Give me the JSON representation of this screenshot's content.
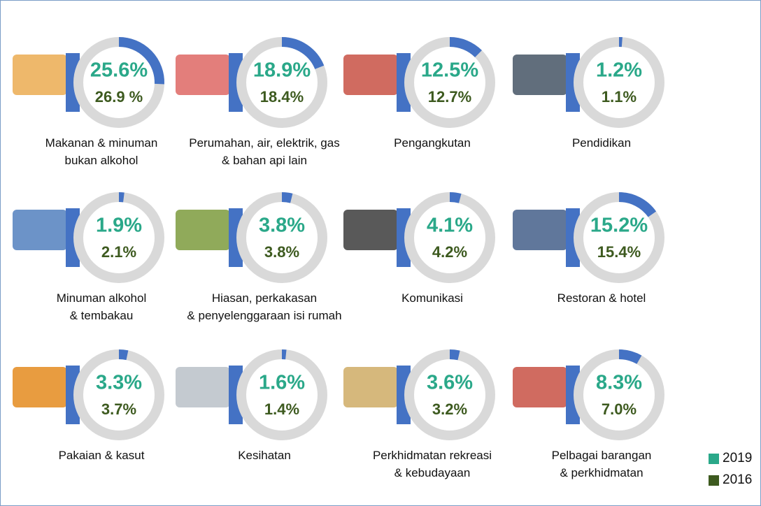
{
  "chart_data": {
    "type": "donut",
    "categories": [
      "Makanan & minuman\nbukan alkohol",
      "Perumahan, air, elektrik, gas\n& bahan api lain",
      "Pengangkutan",
      "Pendidikan",
      "Minuman alkohol\n& tembakau",
      "Hiasan, perkakasan\n& penyelenggaraan isi rumah",
      "Komunikasi",
      "Restoran & hotel",
      "Pakaian & kasut",
      "Kesihatan",
      "Perkhidmatan rekreasi\n& kebudayaan",
      "Pelbagai barangan\n& perkhidmatan"
    ],
    "arc_color": "#4472c4",
    "series": [
      {
        "name": "2019",
        "color": "#2aa889",
        "values": [
          25.6,
          18.9,
          12.5,
          1.2,
          1.9,
          3.8,
          4.1,
          15.2,
          3.3,
          1.6,
          3.6,
          8.3
        ],
        "value_labels": [
          "25.6%",
          "18.9%",
          "12.5%",
          "1.2%",
          "1.9%",
          "3.8%",
          "4.1%",
          "15.2%",
          "3.3%",
          "1.6%",
          "3.6%",
          "8.3%"
        ]
      },
      {
        "name": "2016",
        "color": "#3d5a1f",
        "values": [
          26.9,
          18.4,
          12.7,
          1.1,
          2.1,
          3.8,
          4.2,
          15.4,
          3.7,
          1.4,
          3.2,
          7.0
        ],
        "value_labels": [
          "26.9 %",
          "18.4%",
          "12.7%",
          "1.1%",
          "2.1%",
          "3.8%",
          "4.2%",
          "15.4%",
          "3.7%",
          "1.4%",
          "3.2%",
          "7.0%"
        ]
      }
    ]
  }
}
